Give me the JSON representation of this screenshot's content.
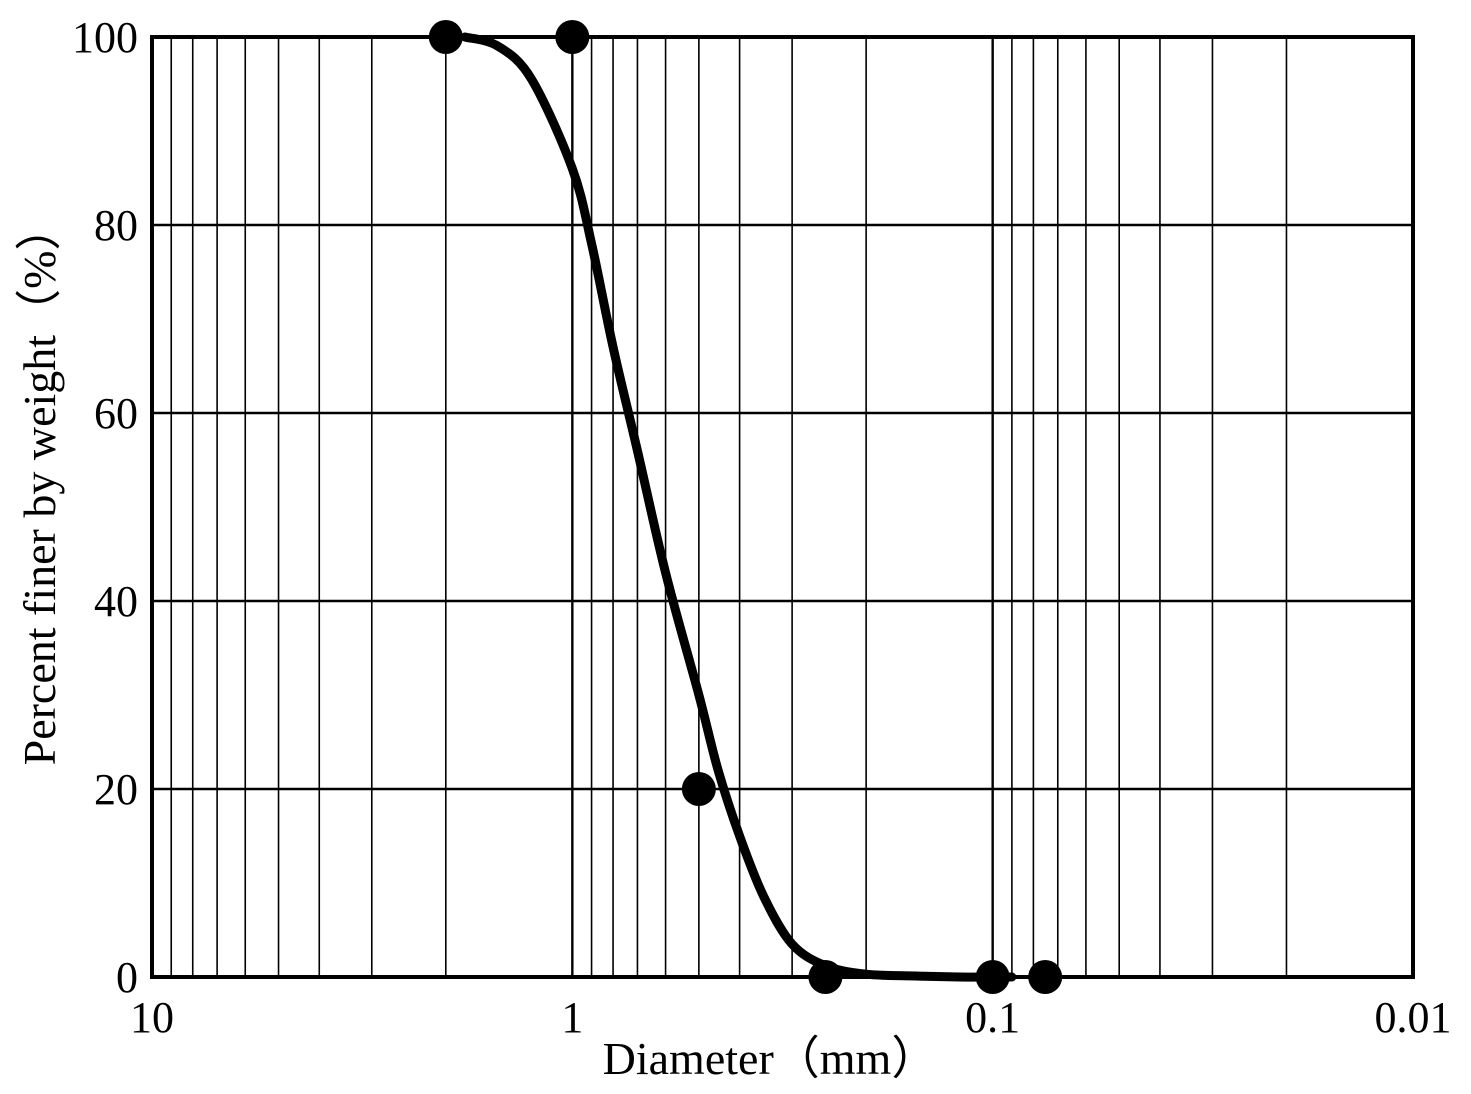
{
  "chart_data": {
    "type": "scatter",
    "xlabel": "Diameter（mm）",
    "ylabel": "Percent finer by weight（%）",
    "x_scale": "log",
    "x_reversed": true,
    "xlim": [
      10,
      0.01
    ],
    "ylim": [
      0,
      100
    ],
    "x_ticks": [
      {
        "value": 10,
        "label": "10"
      },
      {
        "value": 1,
        "label": "1"
      },
      {
        "value": 0.1,
        "label": "0.1"
      },
      {
        "value": 0.01,
        "label": "0.01"
      }
    ],
    "y_ticks": [
      {
        "value": 0,
        "label": "0"
      },
      {
        "value": 20,
        "label": "20"
      },
      {
        "value": 40,
        "label": "40"
      },
      {
        "value": 60,
        "label": "60"
      },
      {
        "value": 80,
        "label": "80"
      },
      {
        "value": 100,
        "label": "100"
      }
    ],
    "grid": true,
    "series": [
      {
        "kind": "points",
        "marker": "filled-circle",
        "color": "#000000",
        "x": [
          2.0,
          1.0,
          0.5,
          0.25,
          0.1,
          0.075
        ],
        "y": [
          100,
          100,
          20,
          0,
          0,
          0
        ]
      },
      {
        "kind": "line",
        "color": "#000000",
        "x": [
          1.8,
          1.5,
          1.25,
          1.0,
          0.9,
          0.8,
          0.7,
          0.6,
          0.5,
          0.45,
          0.4,
          0.35,
          0.3,
          0.25,
          0.2,
          0.15,
          0.12,
          0.1,
          0.09
        ],
        "y": [
          100,
          99,
          95.5,
          86,
          78,
          67,
          56,
          43,
          30,
          22,
          15,
          8.5,
          3.5,
          1.2,
          0.3,
          0.1,
          0,
          0,
          0
        ]
      }
    ]
  }
}
